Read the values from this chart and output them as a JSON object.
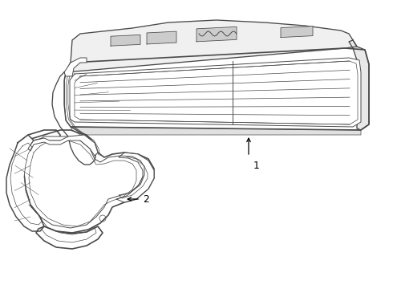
{
  "background_color": "#ffffff",
  "line_color": "#4a4a4a",
  "lw_main": 1.2,
  "lw_thin": 0.7,
  "lw_inner": 0.5
}
